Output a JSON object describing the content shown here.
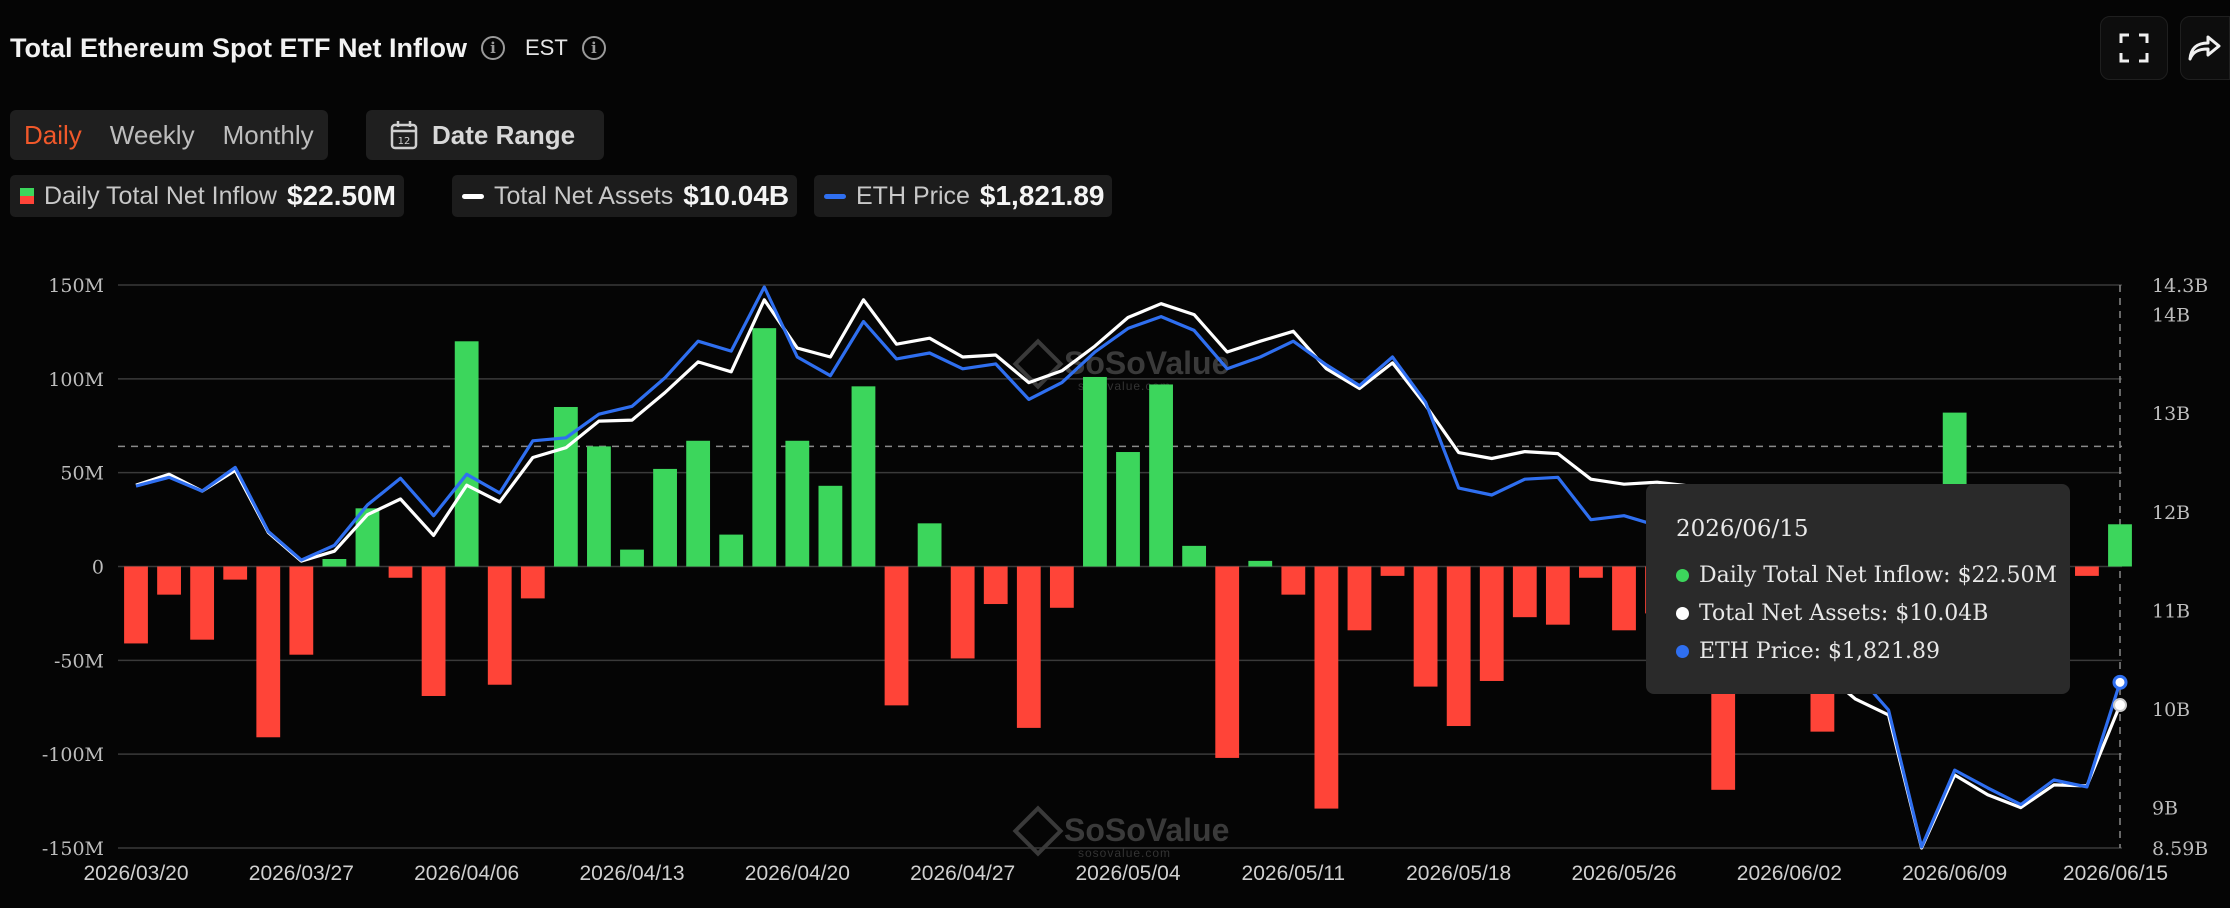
{
  "header": {
    "title": "Total Ethereum Spot ETF Net Inflow",
    "timezone": "EST"
  },
  "tabs": [
    {
      "label": "Daily",
      "active": true
    },
    {
      "label": "Weekly",
      "active": false
    },
    {
      "label": "Monthly",
      "active": false
    }
  ],
  "date_range": {
    "label": "Date Range",
    "calendar_day": "12"
  },
  "legend": [
    {
      "name": "Daily Total Net Inflow",
      "value": "$22.50M"
    },
    {
      "name": "Total Net Assets",
      "value": "$10.04B"
    },
    {
      "name": "ETH Price",
      "value": "$1,821.89"
    }
  ],
  "tooltip": {
    "date": "2026/06/15",
    "rows": [
      {
        "label": "Daily Total Net Inflow: $22.50M",
        "color": "#3cd65c"
      },
      {
        "label": "Total Net Assets: $10.04B",
        "color": "#ffffff"
      },
      {
        "label": "ETH Price: $1,821.89",
        "color": "#2f6ff0"
      }
    ]
  },
  "watermark": {
    "name": "SoSoValue",
    "url": "sosovalue.com"
  },
  "colors": {
    "positive": "#3cd65c",
    "negative": "#ff4438",
    "assets_line": "#ffffff",
    "price_line": "#2f6ff0"
  },
  "chart_data": {
    "type": "bar",
    "left_axis": {
      "ticks": [
        "150M",
        "100M",
        "50M",
        "0",
        "-50M",
        "-100M",
        "-150M"
      ],
      "range": [
        -150,
        150
      ],
      "unit": "M"
    },
    "right_axis": {
      "ticks": [
        "14.3B",
        "14B",
        "13B",
        "12B",
        "11B",
        "10B",
        "9B",
        "8.59B"
      ],
      "range": [
        8.59,
        14.3
      ],
      "unit": "B"
    },
    "x_tick_labels": [
      "2026/03/20",
      "2026/03/27",
      "2026/04/06",
      "2026/04/13",
      "2026/04/20",
      "2026/04/27",
      "2026/05/04",
      "2026/05/11",
      "2026/05/18",
      "2026/05/26",
      "2026/06/02",
      "2026/06/09",
      "2026/06/15"
    ],
    "x_tick_index": [
      0,
      5,
      10,
      15,
      20,
      25,
      30,
      35,
      40,
      45,
      50,
      55,
      60
    ],
    "dashed_reference": 64,
    "series": [
      {
        "name": "Daily Total Net Inflow",
        "kind": "bar",
        "values": [
          -41,
          -15,
          -39,
          -7,
          -91,
          -47,
          4,
          31,
          -6,
          -69,
          120,
          -63,
          -17,
          85,
          64,
          9,
          52,
          67,
          17,
          127,
          67,
          43,
          96,
          -74,
          23,
          -49,
          -20,
          -86,
          -22,
          101,
          61,
          97,
          11,
          -102,
          3,
          -15,
          -129,
          -34,
          -5,
          -64,
          -85,
          -61,
          -27,
          -31,
          -6,
          -34,
          -25,
          -22,
          -119,
          -36,
          -20,
          -88,
          -20,
          -20,
          -22,
          82,
          -15,
          -10,
          -9,
          -5,
          22.5
        ]
      },
      {
        "name": "Total Net Assets",
        "kind": "line",
        "values": [
          12.27,
          12.38,
          12.21,
          12.42,
          11.79,
          11.5,
          11.6,
          11.97,
          12.13,
          11.76,
          12.27,
          12.1,
          12.55,
          12.65,
          12.92,
          12.93,
          13.21,
          13.52,
          13.42,
          14.15,
          13.66,
          13.57,
          14.15,
          13.7,
          13.76,
          13.57,
          13.59,
          13.31,
          13.43,
          13.68,
          13.97,
          14.11,
          14.0,
          13.62,
          13.73,
          13.83,
          13.45,
          13.25,
          13.51,
          13.08,
          12.6,
          12.54,
          12.61,
          12.59,
          12.33,
          12.28,
          12.3,
          12.26,
          12.23,
          12.22,
          10.62,
          10.38,
          10.1,
          9.94,
          8.59,
          9.33,
          9.13,
          9.0,
          9.23,
          9.22,
          10.04
        ]
      },
      {
        "name": "ETH Price",
        "kind": "line",
        "values": [
          12.26,
          12.35,
          12.21,
          12.45,
          11.8,
          11.51,
          11.66,
          12.07,
          12.34,
          11.96,
          12.38,
          12.19,
          12.72,
          12.75,
          12.99,
          13.07,
          13.36,
          13.73,
          13.63,
          14.28,
          13.57,
          13.38,
          13.93,
          13.55,
          13.61,
          13.45,
          13.5,
          13.14,
          13.31,
          13.62,
          13.86,
          13.98,
          13.84,
          13.45,
          13.57,
          13.73,
          13.49,
          13.28,
          13.57,
          13.11,
          12.24,
          12.17,
          12.33,
          12.35,
          11.92,
          11.96,
          11.86,
          11.82,
          11.74,
          11.7,
          11.38,
          10.91,
          10.37,
          9.99,
          8.6,
          9.38,
          9.2,
          9.03,
          9.28,
          9.21,
          10.27
        ]
      }
    ]
  }
}
